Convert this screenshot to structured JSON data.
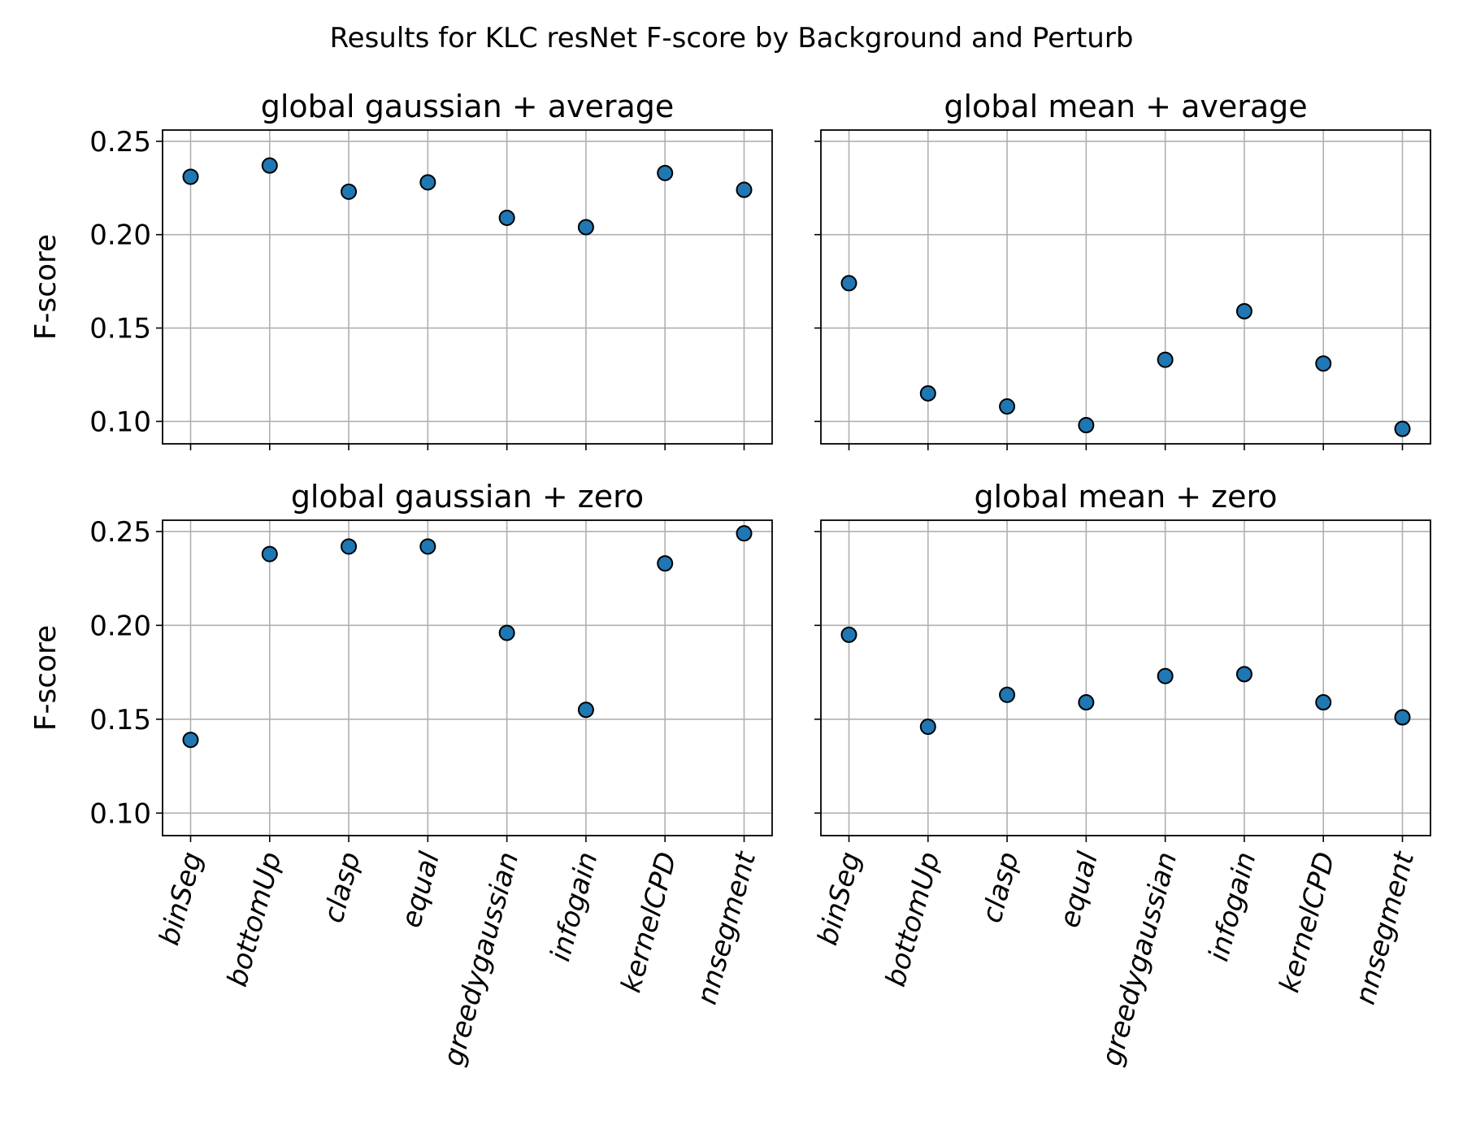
{
  "chart_data": {
    "type": "scatter",
    "title": "Results for KLC resNet F-score by Background and Perturb",
    "categories": [
      "binSeg",
      "bottomUp",
      "clasp",
      "equal",
      "greedygaussian",
      "infogain",
      "kernelCPD",
      "nnsegment"
    ],
    "ylabel": "F-score",
    "ylim": [
      0.088,
      0.256
    ],
    "yticks": [
      "0.10",
      "0.15",
      "0.20",
      "0.25"
    ],
    "grid": true,
    "marker_color": "#1f77b4",
    "marker_edge_color": "#000000",
    "panels": [
      {
        "title": "global gaussian + average",
        "values": [
          0.231,
          0.237,
          0.223,
          0.228,
          0.209,
          0.204,
          0.233,
          0.224
        ]
      },
      {
        "title": "global mean + average",
        "values": [
          0.174,
          0.115,
          0.108,
          0.098,
          0.133,
          0.159,
          0.131,
          0.096
        ]
      },
      {
        "title": "global gaussian + zero",
        "values": [
          0.139,
          0.238,
          0.242,
          0.242,
          0.196,
          0.155,
          0.233,
          0.249
        ]
      },
      {
        "title": "global mean + zero",
        "values": [
          0.195,
          0.146,
          0.163,
          0.159,
          0.173,
          0.174,
          0.159,
          0.151
        ]
      }
    ]
  }
}
